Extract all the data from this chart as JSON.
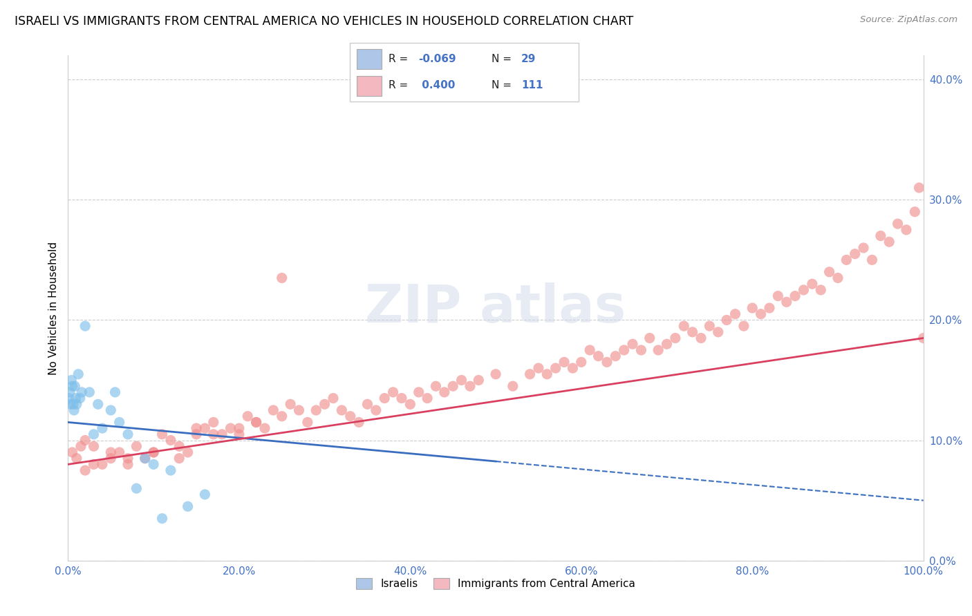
{
  "title": "ISRAELI VS IMMIGRANTS FROM CENTRAL AMERICA NO VEHICLES IN HOUSEHOLD CORRELATION CHART",
  "source": "Source: ZipAtlas.com",
  "ylabel": "No Vehicles in Household",
  "legend_labels": [
    "Israelis",
    "Immigrants from Central America"
  ],
  "R_blue": -0.069,
  "N_blue": 29,
  "R_pink": 0.4,
  "N_pink": 111,
  "blue_color": "#7fbfea",
  "blue_line_color": "#3a6dbf",
  "pink_color": "#f09090",
  "pink_line_color": "#d94060",
  "xlim": [
    0.0,
    100.0
  ],
  "ylim": [
    0.0,
    42.0
  ],
  "yticks": [
    0.0,
    10.0,
    20.0,
    30.0,
    40.0
  ],
  "xticks": [
    0.0,
    20.0,
    40.0,
    60.0,
    80.0,
    100.0
  ],
  "blue_scatter_x": [
    0.1,
    0.2,
    0.3,
    0.4,
    0.5,
    0.6,
    0.7,
    0.8,
    0.9,
    1.0,
    1.2,
    1.4,
    1.6,
    2.0,
    2.5,
    3.0,
    3.5,
    4.0,
    5.0,
    5.5,
    6.0,
    7.0,
    8.0,
    9.0,
    10.0,
    12.0,
    14.0,
    16.0,
    11.0
  ],
  "blue_scatter_y": [
    13.5,
    14.0,
    13.0,
    15.0,
    14.5,
    13.0,
    12.5,
    14.5,
    13.5,
    13.0,
    15.5,
    13.5,
    14.0,
    19.5,
    14.0,
    10.5,
    13.0,
    11.0,
    12.5,
    14.0,
    11.5,
    10.5,
    6.0,
    8.5,
    8.0,
    7.5,
    4.5,
    5.5,
    3.5
  ],
  "pink_scatter_x": [
    0.5,
    1.0,
    1.5,
    2.0,
    3.0,
    4.0,
    5.0,
    6.0,
    7.0,
    8.0,
    9.0,
    10.0,
    11.0,
    12.0,
    13.0,
    14.0,
    15.0,
    16.0,
    17.0,
    18.0,
    19.0,
    20.0,
    21.0,
    22.0,
    23.0,
    24.0,
    25.0,
    26.0,
    27.0,
    28.0,
    29.0,
    30.0,
    31.0,
    32.0,
    33.0,
    34.0,
    35.0,
    36.0,
    37.0,
    38.0,
    39.0,
    40.0,
    41.0,
    42.0,
    43.0,
    44.0,
    45.0,
    46.0,
    47.0,
    48.0,
    50.0,
    52.0,
    54.0,
    55.0,
    56.0,
    57.0,
    58.0,
    59.0,
    60.0,
    61.0,
    62.0,
    63.0,
    64.0,
    65.0,
    66.0,
    67.0,
    68.0,
    69.0,
    70.0,
    71.0,
    72.0,
    73.0,
    74.0,
    75.0,
    76.0,
    77.0,
    78.0,
    79.0,
    80.0,
    81.0,
    82.0,
    83.0,
    84.0,
    85.0,
    86.0,
    87.0,
    88.0,
    89.0,
    90.0,
    91.0,
    92.0,
    93.0,
    94.0,
    95.0,
    96.0,
    97.0,
    98.0,
    99.0,
    99.5,
    100.0,
    2.0,
    3.0,
    5.0,
    7.0,
    10.0,
    13.0,
    15.0,
    17.0,
    20.0,
    22.0,
    25.0
  ],
  "pink_scatter_y": [
    9.0,
    8.5,
    9.5,
    10.0,
    9.5,
    8.0,
    8.5,
    9.0,
    8.0,
    9.5,
    8.5,
    9.0,
    10.5,
    10.0,
    9.5,
    9.0,
    10.5,
    11.0,
    11.5,
    10.5,
    11.0,
    10.5,
    12.0,
    11.5,
    11.0,
    12.5,
    12.0,
    13.0,
    12.5,
    11.5,
    12.5,
    13.0,
    13.5,
    12.5,
    12.0,
    11.5,
    13.0,
    12.5,
    13.5,
    14.0,
    13.5,
    13.0,
    14.0,
    13.5,
    14.5,
    14.0,
    14.5,
    15.0,
    14.5,
    15.0,
    15.5,
    14.5,
    15.5,
    16.0,
    15.5,
    16.0,
    16.5,
    16.0,
    16.5,
    17.5,
    17.0,
    16.5,
    17.0,
    17.5,
    18.0,
    17.5,
    18.5,
    17.5,
    18.0,
    18.5,
    19.5,
    19.0,
    18.5,
    19.5,
    19.0,
    20.0,
    20.5,
    19.5,
    21.0,
    20.5,
    21.0,
    22.0,
    21.5,
    22.0,
    22.5,
    23.0,
    22.5,
    24.0,
    23.5,
    25.0,
    25.5,
    26.0,
    25.0,
    27.0,
    26.5,
    28.0,
    27.5,
    29.0,
    31.0,
    18.5,
    7.5,
    8.0,
    9.0,
    8.5,
    9.0,
    8.5,
    11.0,
    10.5,
    11.0,
    11.5,
    23.5
  ],
  "blue_line_x0": 0.0,
  "blue_line_x1": 100.0,
  "blue_line_y0": 11.5,
  "blue_line_y1": 5.0,
  "blue_solid_x1": 50.0,
  "pink_line_x0": 0.0,
  "pink_line_x1": 100.0,
  "pink_line_y0": 8.0,
  "pink_line_y1": 18.5
}
